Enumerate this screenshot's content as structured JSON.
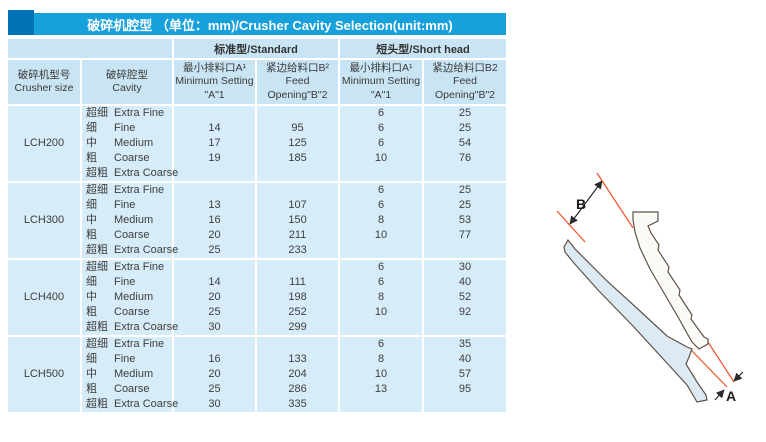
{
  "title": "破碎机腔型 （单位：mm)/Crusher Cavity Selection(unit:mm)",
  "table": {
    "group_headers": {
      "standard": "标准型/Standard",
      "short_head": "短头型/Short head"
    },
    "columns": {
      "crusher_size": {
        "zh": "破碎机型号",
        "en": "Crusher size"
      },
      "cavity": {
        "zh": "破碎腔型",
        "en": "Cavity"
      },
      "std_min_setting": {
        "zh": "最小排料口A¹",
        "en_line1": "Minimum Setting",
        "en_line2": "\"A\"1"
      },
      "std_feed_opening": {
        "zh": "紧边给料口B²",
        "en_line1": "Feed",
        "en_line2": "Opening\"B\"2"
      },
      "sh_min_setting": {
        "zh": "最小排料口A¹",
        "en_line1": "Minimum Setting",
        "en_line2": "\"A\"1"
      },
      "sh_feed_opening": {
        "zh": "紧边给料口B2",
        "en_line1": "Feed",
        "en_line2": "Opening\"B\"2"
      }
    },
    "sections": [
      {
        "model": "LCH200",
        "rows": [
          {
            "cavity_zh": "超细",
            "cavity_en": "Extra Fine",
            "values": [
              "",
              "",
              "6",
              "25"
            ]
          },
          {
            "cavity_zh": "细",
            "cavity_en": "Fine",
            "values": [
              "14",
              "95",
              "6",
              "25"
            ]
          },
          {
            "cavity_zh": "中",
            "cavity_en": "Medium",
            "values": [
              "17",
              "125",
              "6",
              "54"
            ]
          },
          {
            "cavity_zh": "粗",
            "cavity_en": "Coarse",
            "values": [
              "19",
              "185",
              "10",
              "76"
            ]
          },
          {
            "cavity_zh": "超粗",
            "cavity_en": "Extra Coarse",
            "values": [
              "",
              "",
              "",
              ""
            ]
          }
        ]
      },
      {
        "model": "LCH300",
        "rows": [
          {
            "cavity_zh": "超细",
            "cavity_en": "Extra Fine",
            "values": [
              "",
              "",
              "6",
              "25"
            ]
          },
          {
            "cavity_zh": "细",
            "cavity_en": "Fine",
            "values": [
              "13",
              "107",
              "6",
              "25"
            ]
          },
          {
            "cavity_zh": "中",
            "cavity_en": "Medium",
            "values": [
              "16",
              "150",
              "8",
              "53"
            ]
          },
          {
            "cavity_zh": "粗",
            "cavity_en": "Coarse",
            "values": [
              "20",
              "211",
              "10",
              "77"
            ]
          },
          {
            "cavity_zh": "超粗",
            "cavity_en": "Extra Coarse",
            "values": [
              "25",
              "233",
              "",
              ""
            ]
          }
        ]
      },
      {
        "model": "LCH400",
        "rows": [
          {
            "cavity_zh": "超细",
            "cavity_en": "Extra Fine",
            "values": [
              "",
              "",
              "6",
              "30"
            ]
          },
          {
            "cavity_zh": "细",
            "cavity_en": "Fine",
            "values": [
              "14",
              "111",
              "6",
              "40"
            ]
          },
          {
            "cavity_zh": "中",
            "cavity_en": "Medium",
            "values": [
              "20",
              "198",
              "8",
              "52"
            ]
          },
          {
            "cavity_zh": "粗",
            "cavity_en": "Coarse",
            "values": [
              "25",
              "252",
              "10",
              "92"
            ]
          },
          {
            "cavity_zh": "超粗",
            "cavity_en": "Extra Coarse",
            "values": [
              "30",
              "299",
              "",
              ""
            ]
          }
        ]
      },
      {
        "model": "LCH500",
        "rows": [
          {
            "cavity_zh": "超细",
            "cavity_en": "Extra Fine",
            "values": [
              "",
              "",
              "6",
              "35"
            ]
          },
          {
            "cavity_zh": "细",
            "cavity_en": "Fine",
            "values": [
              "16",
              "133",
              "8",
              "40"
            ]
          },
          {
            "cavity_zh": "中",
            "cavity_en": "Medium",
            "values": [
              "20",
              "204",
              "10",
              "57"
            ]
          },
          {
            "cavity_zh": "粗",
            "cavity_en": "Coarse",
            "values": [
              "25",
              "286",
              "13",
              "95"
            ]
          },
          {
            "cavity_zh": "超粗",
            "cavity_en": "Extra Coarse",
            "values": [
              "30",
              "335",
              "",
              ""
            ]
          }
        ]
      }
    ]
  },
  "diagram": {
    "label_a": "A",
    "label_b": "B"
  },
  "colors": {
    "title_bar_bg": "#18a0db",
    "accent_block_bg": "#0072b5",
    "cell_bg": "#d6ecf8",
    "header_cell_bg": "#c9e5f3",
    "text": "#3e3e3e",
    "dimension_line_red": "#f0532b",
    "diagram_outline": "#5e5149",
    "mantle_fill": "#dceaf4",
    "concave_fill": "#fbfbf6"
  }
}
